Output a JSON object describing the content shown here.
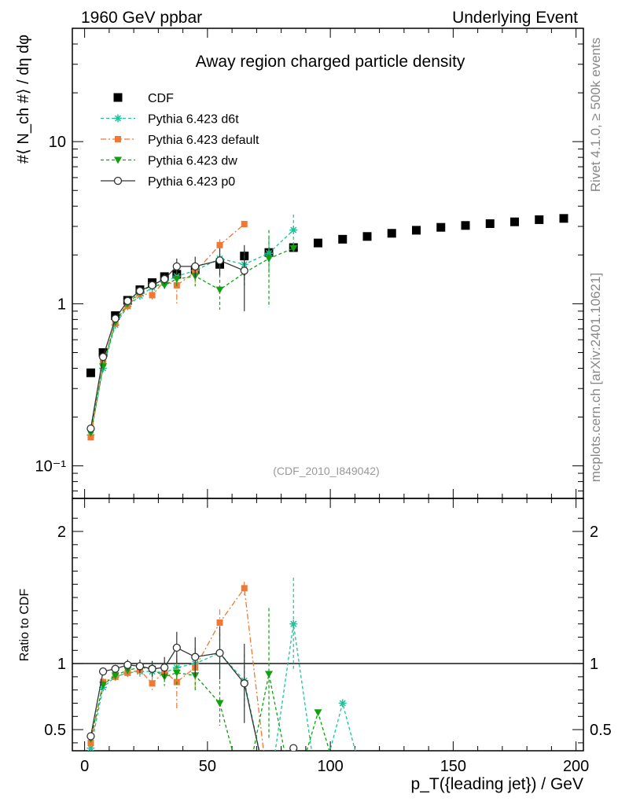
{
  "header": {
    "left": "1960 GeV ppbar",
    "right": "Underlying Event"
  },
  "side_labels": {
    "rivet": "Rivet 4.1.0, ≥ 500k events",
    "mcplots": "mcplots.cern.ch [arXiv:2401.10621]"
  },
  "chart_data": [
    {
      "type": "scatter",
      "panel": "main",
      "title": "Away region charged particle density",
      "ylabel": "#⟨ N_ch #⟩ / dη dφ",
      "yscale": "log",
      "ylim": [
        0.063,
        50
      ],
      "xlim": [
        -5,
        203
      ],
      "watermark": "(CDF_2010_I849042)",
      "ytick_labels": [
        "10⁻¹",
        "1",
        "10"
      ],
      "legend_position": "top-left",
      "series": [
        {
          "name": "CDF",
          "color": "#000000",
          "marker": "square",
          "x": [
            2.5,
            7.5,
            12.5,
            17.5,
            22.5,
            27.5,
            32.5,
            37.5,
            45,
            55,
            65,
            75,
            85,
            95,
            105,
            115,
            125,
            135,
            145,
            155,
            165,
            175,
            185,
            195
          ],
          "y": [
            0.375,
            0.5,
            0.845,
            1.05,
            1.22,
            1.35,
            1.47,
            1.52,
            1.62,
            1.75,
            1.97,
            2.07,
            2.22,
            2.37,
            2.5,
            2.6,
            2.72,
            2.84,
            2.96,
            3.04,
            3.12,
            3.2,
            3.3,
            3.36
          ],
          "yerr": [
            0.01,
            0.01,
            0.02,
            0.02,
            0.02,
            0.02,
            0.03,
            0.03,
            0.04,
            0.05,
            0.06,
            0.07,
            0.08,
            0.05,
            0.05,
            0.05,
            0.05,
            0.05,
            0.05,
            0.05,
            0.05,
            0.05,
            0.05,
            0.05
          ]
        },
        {
          "name": "Pythia 6.423 d6t",
          "color": "#1bc39a",
          "marker": "star",
          "dash": "4,3",
          "x": [
            2.5,
            7.5,
            12.5,
            17.5,
            22.5,
            27.5,
            32.5,
            37.5,
            45,
            55,
            65,
            75,
            85
          ],
          "y": [
            0.155,
            0.4,
            0.74,
            0.965,
            1.12,
            1.26,
            1.36,
            1.48,
            1.6,
            1.9,
            1.75,
            2.05,
            2.85
          ],
          "yerr": [
            0.005,
            0.02,
            0.03,
            0.04,
            0.05,
            0.08,
            0.1,
            0.15,
            0.2,
            0.3,
            0.4,
            0.5,
            0.7
          ]
        },
        {
          "name": "Pythia 6.423 default",
          "color": "#f07832",
          "marker": "filled-square",
          "dash": "7,3,2,3",
          "x": [
            2.5,
            7.5,
            12.5,
            17.5,
            22.5,
            27.5,
            32.5,
            37.5,
            45,
            55,
            65
          ],
          "y": [
            0.15,
            0.43,
            0.76,
            0.97,
            1.16,
            1.13,
            1.38,
            1.3,
            1.57,
            2.3,
            3.1
          ],
          "yerr": [
            0.005,
            0.02,
            0.03,
            0.05,
            0.06,
            0.08,
            0.12,
            0.3,
            0.25,
            0.2,
            0.1
          ]
        },
        {
          "name": "Pythia 6.423 dw",
          "color": "#10a010",
          "marker": "triangle-down",
          "dash": "4,3",
          "x": [
            2.5,
            7.5,
            12.5,
            17.5,
            22.5,
            27.5,
            32.5,
            37.5,
            45,
            55,
            65,
            75,
            85
          ],
          "y": [
            0.16,
            0.41,
            0.77,
            1.0,
            1.18,
            1.3,
            1.3,
            1.42,
            1.48,
            1.22,
            1.55,
            1.9,
            2.2
          ],
          "yerr": [
            0.005,
            0.02,
            0.03,
            0.04,
            0.05,
            0.07,
            0.1,
            0.15,
            0.2,
            0.3,
            0.3,
            0.95,
            0.1
          ]
        },
        {
          "name": "Pythia 6.423 p0",
          "color": "#333333",
          "marker": "open-circle",
          "dash": "",
          "x": [
            2.5,
            7.5,
            12.5,
            17.5,
            22.5,
            27.5,
            32.5,
            37.5,
            45,
            55,
            65
          ],
          "y": [
            0.17,
            0.47,
            0.81,
            1.04,
            1.2,
            1.3,
            1.42,
            1.7,
            1.7,
            1.85,
            1.6
          ],
          "yerr": [
            0.005,
            0.02,
            0.03,
            0.05,
            0.06,
            0.08,
            0.1,
            0.2,
            0.25,
            0.35,
            0.7
          ]
        }
      ]
    },
    {
      "type": "line",
      "panel": "ratio",
      "ylabel": "Ratio to CDF",
      "xlabel": "p_T({leading jet}) / GeV",
      "xlim": [
        -5,
        203
      ],
      "ylim": [
        0.34,
        2.25
      ],
      "reference_line": 1.0,
      "xtick_labels": [
        "0",
        "50",
        "100",
        "150",
        "200"
      ],
      "ytick_labels": [
        "0.5",
        "1",
        "2"
      ],
      "series": [
        {
          "name": "Pythia 6.423 d6t",
          "x": [
            2.5,
            7.5,
            12.5,
            17.5,
            22.5,
            27.5,
            32.5,
            37.5,
            45,
            55,
            65,
            75,
            85,
            95,
            105,
            115
          ],
          "y": [
            0.36,
            0.82,
            0.9,
            0.93,
            0.94,
            0.94,
            0.93,
            0.97,
            1.0,
            1.08,
            0.87,
            0.0,
            1.3,
            0.0,
            0.7,
            0.0
          ],
          "yerr": [
            0.01,
            0.03,
            0.03,
            0.03,
            0.04,
            0.05,
            0.06,
            0.1,
            0.12,
            0.15,
            0.2,
            0.0,
            0.35,
            0.0,
            0.0,
            0.0
          ]
        },
        {
          "name": "Pythia 6.423 default",
          "x": [
            2.5,
            7.5,
            12.5,
            17.5,
            22.5,
            27.5,
            32.5,
            37.5,
            45,
            55,
            65,
            75
          ],
          "y": [
            0.4,
            0.86,
            0.9,
            0.93,
            0.95,
            0.85,
            0.94,
            0.86,
            0.97,
            1.31,
            1.57,
            0.0
          ],
          "yerr": [
            0.01,
            0.03,
            0.03,
            0.04,
            0.05,
            0.05,
            0.08,
            0.2,
            0.15,
            0.1,
            0.05,
            0.0
          ]
        },
        {
          "name": "Pythia 6.423 dw",
          "x": [
            2.5,
            7.5,
            12.5,
            17.5,
            22.5,
            27.5,
            32.5,
            37.5,
            45,
            55,
            65,
            75,
            85,
            95,
            105
          ],
          "y": [
            0.43,
            0.84,
            0.91,
            0.95,
            0.97,
            0.96,
            0.9,
            0.93,
            0.91,
            0.7,
            0.0,
            0.92,
            0.0,
            0.63,
            0.0
          ],
          "yerr": [
            0.01,
            0.03,
            0.03,
            0.03,
            0.04,
            0.05,
            0.07,
            0.1,
            0.12,
            0.17,
            0.0,
            0.5,
            0.0,
            0.0,
            0.0
          ]
        },
        {
          "name": "Pythia 6.423 p0",
          "x": [
            2.5,
            7.5,
            12.5,
            17.5,
            22.5,
            27.5,
            32.5,
            37.5,
            45,
            55,
            65,
            75,
            85
          ],
          "y": [
            0.45,
            0.94,
            0.96,
            0.99,
            0.98,
            0.96,
            0.97,
            1.12,
            1.05,
            1.08,
            0.85,
            0.0,
            0.36
          ],
          "yerr": [
            0.01,
            0.03,
            0.03,
            0.04,
            0.05,
            0.06,
            0.08,
            0.12,
            0.15,
            0.2,
            0.3,
            0.0,
            0.0
          ]
        }
      ]
    }
  ]
}
